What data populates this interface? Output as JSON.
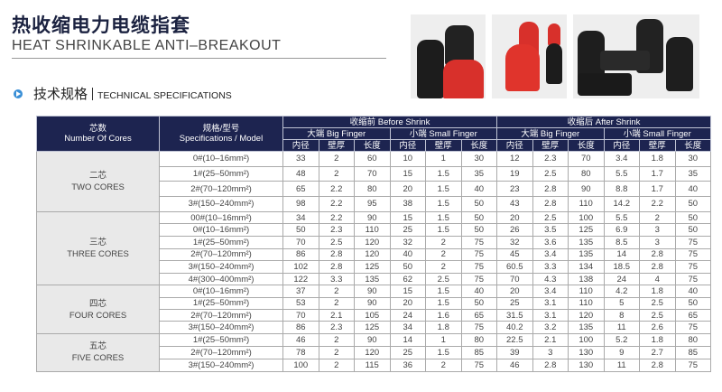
{
  "header": {
    "title_cn": "热收缩电力电缆指套",
    "title_en": "HEAT SHRINKABLE ANTI–BREAKOUT"
  },
  "section": {
    "icon": "arrow-circle-icon",
    "title_cn": "技术规格",
    "title_en": "TECHNICAL SPECIFICATIONS"
  },
  "photos": [
    "black-and-red-breakouts",
    "red-and-black-breakouts",
    "black-breakouts"
  ],
  "colors": {
    "header_bg": "#1d2450",
    "group_bg": "#e9e9e9",
    "accent": "#3a8fd6"
  },
  "table": {
    "col_cores_cn": "芯数",
    "col_cores_en": "Number Of Cores",
    "col_spec_cn": "规格/型号",
    "col_spec_en": "Specifications / Model",
    "before": "收缩前 Before Shrink",
    "after": "收缩后 After Shrink",
    "big": "大端 Big Finger",
    "small": "小端 Small Finger",
    "sub": [
      "内径",
      "壁厚",
      "长度"
    ],
    "groups": [
      {
        "cn": "二芯",
        "en": "TWO CORES",
        "rows": [
          [
            "0#(10–16mm²)",
            "33",
            "2",
            "60",
            "10",
            "1",
            "30",
            "12",
            "2.3",
            "70",
            "3.4",
            "1.8",
            "30"
          ],
          [
            "1#(25–50mm²)",
            "48",
            "2",
            "70",
            "15",
            "1.5",
            "35",
            "19",
            "2.5",
            "80",
            "5.5",
            "1.7",
            "35"
          ],
          [
            "2#(70–120mm²)",
            "65",
            "2.2",
            "80",
            "20",
            "1.5",
            "40",
            "23",
            "2.8",
            "90",
            "8.8",
            "1.7",
            "40"
          ],
          [
            "3#(150–240mm²)",
            "98",
            "2.2",
            "95",
            "38",
            "1.5",
            "50",
            "43",
            "2.8",
            "110",
            "14.2",
            "2.2",
            "50"
          ]
        ]
      },
      {
        "cn": "三芯",
        "en": "THREE CORES",
        "rows": [
          [
            "00#(10–16mm²)",
            "34",
            "2.2",
            "90",
            "15",
            "1.5",
            "50",
            "20",
            "2.5",
            "100",
            "5.5",
            "2",
            "50"
          ],
          [
            "0#(10–16mm²)",
            "50",
            "2.3",
            "110",
            "25",
            "1.5",
            "50",
            "26",
            "3.5",
            "125",
            "6.9",
            "3",
            "50"
          ],
          [
            "1#(25–50mm²)",
            "70",
            "2.5",
            "120",
            "32",
            "2",
            "75",
            "32",
            "3.6",
            "135",
            "8.5",
            "3",
            "75"
          ],
          [
            "2#(70–120mm²)",
            "86",
            "2.8",
            "120",
            "40",
            "2",
            "75",
            "45",
            "3.4",
            "135",
            "14",
            "2.8",
            "75"
          ],
          [
            "3#(150–240mm²)",
            "102",
            "2.8",
            "125",
            "50",
            "2",
            "75",
            "60.5",
            "3.3",
            "134",
            "18.5",
            "2.8",
            "75"
          ],
          [
            "4#(300–400mm²)",
            "122",
            "3.3",
            "135",
            "62",
            "2.5",
            "75",
            "70",
            "4.3",
            "138",
            "24",
            "4",
            "75"
          ]
        ]
      },
      {
        "cn": "四芯",
        "en": "FOUR CORES",
        "rows": [
          [
            "0#(10–16mm²)",
            "37",
            "2",
            "90",
            "15",
            "1.5",
            "40",
            "20",
            "3.4",
            "110",
            "4.2",
            "1.8",
            "40"
          ],
          [
            "1#(25–50mm²)",
            "53",
            "2",
            "90",
            "20",
            "1.5",
            "50",
            "25",
            "3.1",
            "110",
            "5",
            "2.5",
            "50"
          ],
          [
            "2#(70–120mm²)",
            "70",
            "2.1",
            "105",
            "24",
            "1.6",
            "65",
            "31.5",
            "3.1",
            "120",
            "8",
            "2.5",
            "65"
          ],
          [
            "3#(150–240mm²)",
            "86",
            "2.3",
            "125",
            "34",
            "1.8",
            "75",
            "40.2",
            "3.2",
            "135",
            "11",
            "2.6",
            "75"
          ]
        ]
      },
      {
        "cn": "五芯",
        "en": "FIVE CORES",
        "rows": [
          [
            "1#(25–50mm²)",
            "46",
            "2",
            "90",
            "14",
            "1",
            "80",
            "22.5",
            "2.1",
            "100",
            "5.2",
            "1.8",
            "80"
          ],
          [
            "2#(70–120mm²)",
            "78",
            "2",
            "120",
            "25",
            "1.5",
            "85",
            "39",
            "3",
            "130",
            "9",
            "2.7",
            "85"
          ],
          [
            "3#(150–240mm²)",
            "100",
            "2",
            "115",
            "36",
            "2",
            "75",
            "46",
            "2.8",
            "130",
            "11",
            "2.8",
            "75"
          ]
        ]
      }
    ]
  }
}
